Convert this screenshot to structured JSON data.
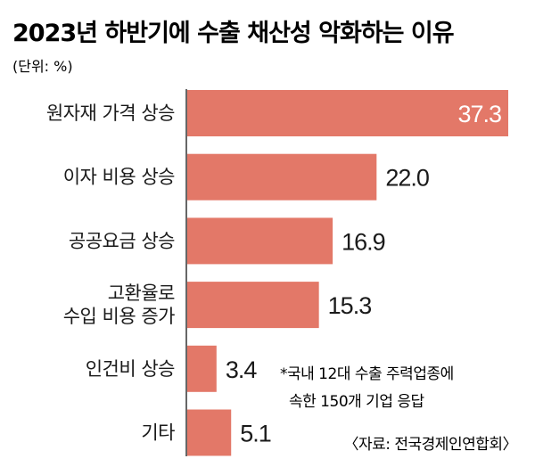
{
  "chart_data": {
    "type": "bar",
    "orientation": "horizontal",
    "title": "2023년 하반기에 수출 채산성 악화하는 이유",
    "unit_label": "(단위: %)",
    "categories": [
      [
        "원자재 가격 상승"
      ],
      [
        "이자 비용 상승"
      ],
      [
        "공공요금 상승"
      ],
      [
        "고환율로",
        "수입 비용 증가"
      ],
      [
        "인건비 상승"
      ],
      [
        "기타"
      ]
    ],
    "values": [
      37.3,
      22.0,
      16.9,
      15.3,
      3.4,
      5.1
    ],
    "value_labels": [
      "37.3",
      "22.0",
      "16.9",
      "15.3",
      "3.4",
      "5.1"
    ],
    "bar_color": "#e37868",
    "highlight_label_color": "#ffffff",
    "label_color": "#1a1a1a",
    "xlim": [
      0,
      37.3
    ],
    "grid": false,
    "legend": "none",
    "footnote": [
      "*국내 12대 수출 주력업종에",
      "속한 150개 기업 응답"
    ],
    "source": "〈자료: 전국경제인연합회〉"
  }
}
